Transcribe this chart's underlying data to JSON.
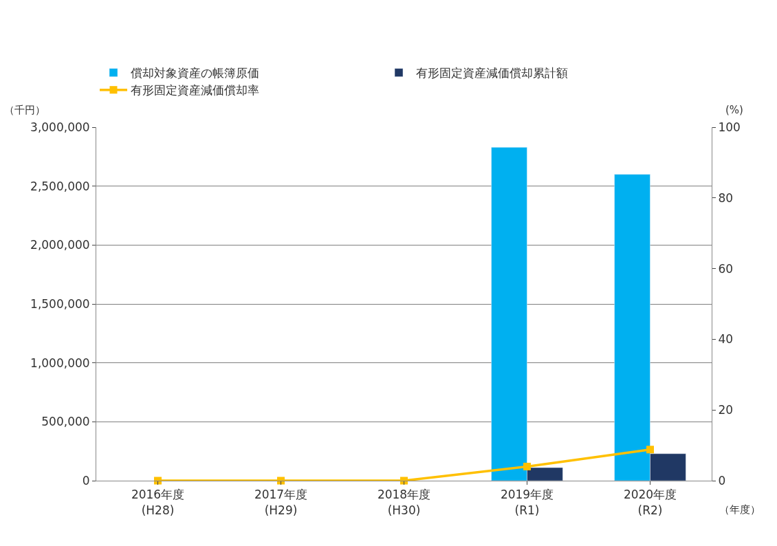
{
  "chart_data": {
    "type": "bar",
    "categories": [
      "2016年度\n(H28)",
      "2017年度\n(H29)",
      "2018年度\n(H30)",
      "2019年度\n(R1)",
      "2020年度\n(R2)"
    ],
    "series": [
      {
        "name": "償却対象資産の帳簿原価",
        "color": "#00b0f0",
        "values": [
          null,
          null,
          null,
          2830000,
          2600000
        ]
      },
      {
        "name": "有形固定資産減価償却累計額",
        "color": "#203864",
        "values": [
          null,
          null,
          null,
          111000,
          229000
        ]
      },
      {
        "name": "有形固定資産減価償却率",
        "type": "line",
        "axis": "y2",
        "color": "#ffc000",
        "marker": "square",
        "values": [
          0,
          0,
          0,
          4.0,
          8.8
        ]
      }
    ],
    "ylim": [
      0,
      3000000
    ],
    "yticks": [
      {
        "value": 0,
        "label": "0"
      },
      {
        "value": 500000,
        "label": "500,000"
      },
      {
        "value": 1000000,
        "label": "1,000,000"
      },
      {
        "value": 1500000,
        "label": "1,500,000"
      },
      {
        "value": 2000000,
        "label": "2,000,000"
      },
      {
        "value": 2500000,
        "label": "2,500,000"
      },
      {
        "value": 3000000,
        "label": "3,000,000"
      }
    ],
    "y2lim": [
      0,
      100
    ],
    "y2ticks": [
      0,
      20,
      40,
      60,
      80,
      100
    ],
    "ylabel": "（千円）",
    "y2label": "(%)",
    "xlabel": "（年度）",
    "grid": "y",
    "legend": "top left"
  }
}
